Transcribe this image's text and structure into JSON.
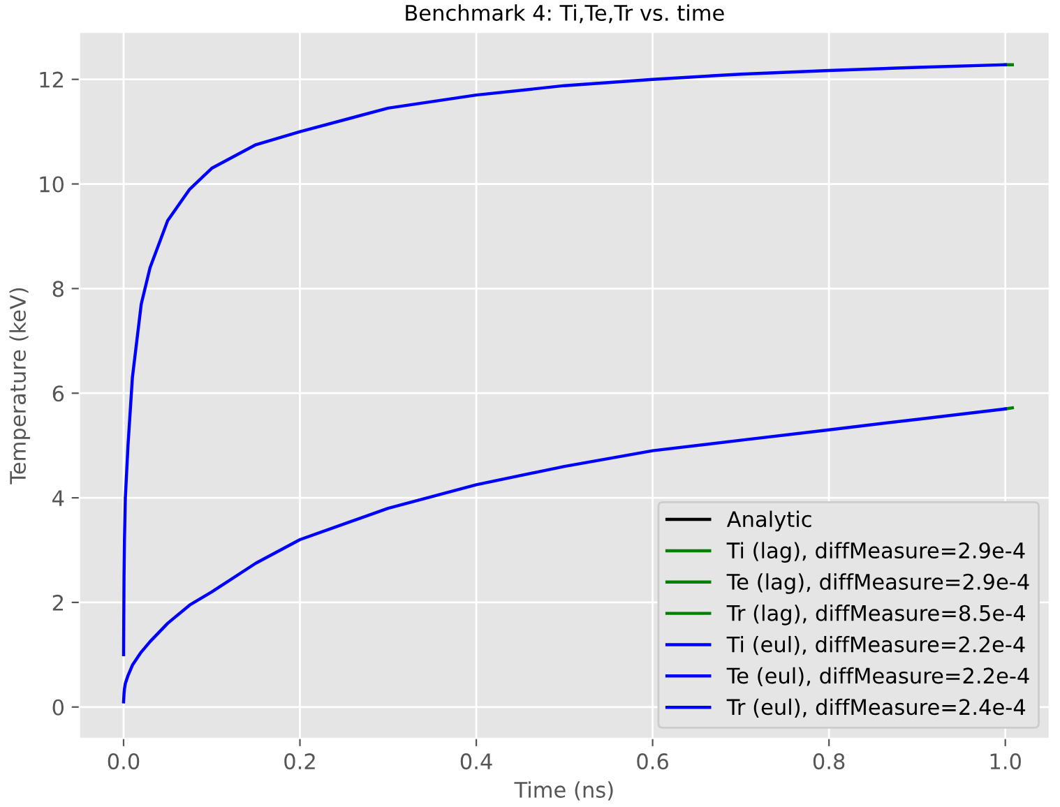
{
  "chart_data": {
    "type": "line",
    "title": "Benchmark 4: Ti,Te,Tr vs. time",
    "xlabel": "Time (ns)",
    "ylabel": "Temperature (keV)",
    "xlim": [
      -0.05,
      1.05
    ],
    "ylim": [
      -0.6,
      12.9
    ],
    "xticks": [
      {
        "value": 0,
        "label": "0.0"
      },
      0.2,
      0.4,
      0.6,
      0.8,
      {
        "value": 1,
        "label": "1.0"
      }
    ],
    "yticks": [
      0,
      2,
      4,
      6,
      8,
      10,
      12
    ],
    "grid": true,
    "legend": "bottom right",
    "marker": "none",
    "line_style": "solid",
    "series": [
      {
        "name": "Analytic",
        "color": "#000000"
      },
      {
        "name": "Ti (lag), diffMeasure=2.9e-4",
        "color": "#008000",
        "x": [
          1.0,
          1.008
        ],
        "values": [
          12.28,
          12.28
        ]
      },
      {
        "name": "Te (lag), diffMeasure=2.9e-4",
        "color": "#008000",
        "x": [
          1.0,
          1.008
        ],
        "values": [
          5.7,
          5.72
        ]
      },
      {
        "name": "Tr (lag), diffMeasure=8.5e-4",
        "color": "#008000"
      },
      {
        "name": "Ti (eul), diffMeasure=2.2e-4",
        "color": "#0000ff",
        "x": [
          0,
          0.0005,
          0.001,
          0.002,
          0.005,
          0.01,
          0.02,
          0.03,
          0.05,
          0.075,
          0.1,
          0.15,
          0.2,
          0.3,
          0.4,
          0.5,
          0.6,
          0.7,
          0.8,
          0.9,
          1.0
        ],
        "values": [
          1.0,
          2.5,
          3.2,
          4.0,
          5.0,
          6.3,
          7.7,
          8.4,
          9.3,
          9.9,
          10.3,
          10.75,
          11.0,
          11.45,
          11.7,
          11.88,
          12.0,
          12.1,
          12.17,
          12.23,
          12.28
        ]
      },
      {
        "name": "Te (eul), diffMeasure=2.2e-4",
        "color": "#0000ff",
        "x": [
          0,
          0.0005,
          0.001,
          0.002,
          0.005,
          0.01,
          0.02,
          0.03,
          0.05,
          0.075,
          0.1,
          0.15,
          0.2,
          0.3,
          0.4,
          0.5,
          0.6,
          0.7,
          0.8,
          0.9,
          1.0
        ],
        "values": [
          0.1,
          0.25,
          0.35,
          0.45,
          0.6,
          0.8,
          1.05,
          1.25,
          1.6,
          1.95,
          2.2,
          2.75,
          3.2,
          3.8,
          4.25,
          4.6,
          4.9,
          5.1,
          5.3,
          5.5,
          5.7
        ]
      },
      {
        "name": "Tr (eul), diffMeasure=2.4e-4",
        "color": "#0000ff"
      }
    ]
  }
}
